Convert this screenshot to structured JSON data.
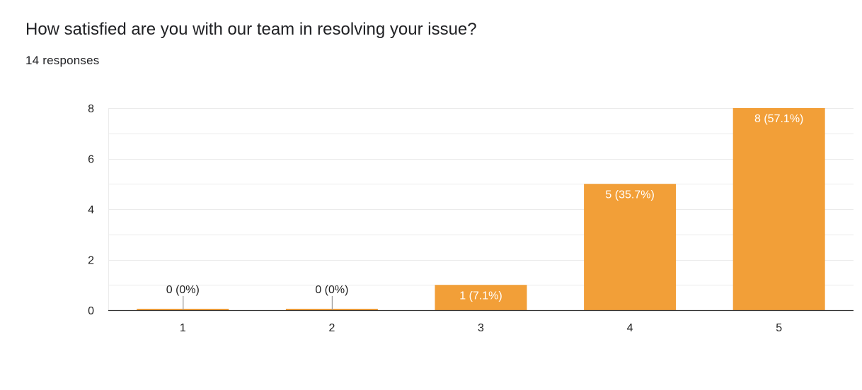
{
  "question": {
    "title": "How satisfied are you with our team in resolving your issue?",
    "responses_label": "14 responses"
  },
  "colors": {
    "bar": "#f29f38",
    "grid": "#ebebeb",
    "axis": "#333333",
    "zero_marker": "#999999"
  },
  "chart_data": {
    "type": "bar",
    "title": "How satisfied are you with our team in resolving your issue?",
    "categories": [
      "1",
      "2",
      "3",
      "4",
      "5"
    ],
    "values": [
      0,
      0,
      1,
      5,
      8
    ],
    "data_labels": [
      "0 (0%)",
      "0 (0%)",
      "1 (7.1%)",
      "5 (35.7%)",
      "8 (57.1%)"
    ],
    "ylim": [
      0,
      8
    ],
    "y_ticks": [
      0,
      2,
      4,
      6,
      8
    ],
    "minor_gridlines": true,
    "grid": true,
    "legend": "none",
    "xlabel": "",
    "ylabel": ""
  }
}
